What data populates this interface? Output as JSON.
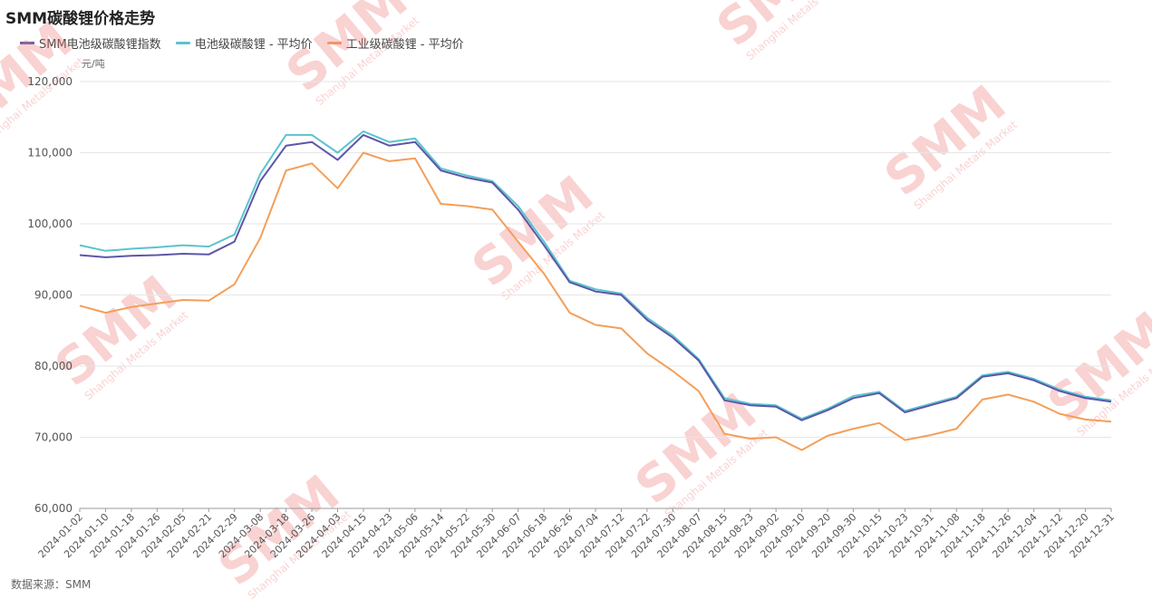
{
  "chart_data": {
    "type": "line",
    "title": "SMM碳酸锂价格走势",
    "unit": "元/吨",
    "source": "数据来源：SMM",
    "ylim": [
      60000,
      120000
    ],
    "yticks": [
      "60,000",
      "70,000",
      "80,000",
      "90,000",
      "100,000",
      "110,000",
      "120,000"
    ],
    "grid": "horizontal",
    "legend_position": "top-left",
    "x_tick_labels": [
      "2024-01-02",
      "2024-01-10",
      "2024-01-18",
      "2024-01-26",
      "2024-02-05",
      "2024-02-21",
      "2024-02-29",
      "2024-03-08",
      "2024-03-18",
      "2024-03-26",
      "2024-04-03",
      "2024-04-15",
      "2024-04-23",
      "2024-05-06",
      "2024-05-14",
      "2024-05-22",
      "2024-05-30",
      "2024-06-07",
      "2024-06-18",
      "2024-06-26",
      "2024-07-04",
      "2024-07-12",
      "2024-07-22",
      "2024-07-30",
      "2024-08-07",
      "2024-08-15",
      "2024-08-23",
      "2024-09-02",
      "2024-09-10",
      "2024-09-20",
      "2024-09-30",
      "2024-10-15",
      "2024-10-23",
      "2024-10-31",
      "2024-11-08",
      "2024-11-18",
      "2024-11-26",
      "2024-12-04",
      "2024-12-12",
      "2024-12-20",
      "2024-12-31"
    ],
    "x": [
      "2024-01-02",
      "2024-01-10",
      "2024-01-18",
      "2024-01-26",
      "2024-02-05",
      "2024-02-21",
      "2024-02-29",
      "2024-03-08",
      "2024-03-18",
      "2024-03-26",
      "2024-04-03",
      "2024-04-15",
      "2024-04-23",
      "2024-05-06",
      "2024-05-14",
      "2024-05-22",
      "2024-05-30",
      "2024-06-07",
      "2024-06-18",
      "2024-06-26",
      "2024-07-04",
      "2024-07-12",
      "2024-07-22",
      "2024-07-30",
      "2024-08-07",
      "2024-08-15",
      "2024-08-23",
      "2024-09-02",
      "2024-09-10",
      "2024-09-20",
      "2024-09-30",
      "2024-10-15",
      "2024-10-23",
      "2024-10-31",
      "2024-11-08",
      "2024-11-18",
      "2024-11-26",
      "2024-12-04",
      "2024-12-12",
      "2024-12-20",
      "2024-12-31"
    ],
    "series": [
      {
        "name": "SMM电池级碳酸锂指数",
        "color": "#5b57a8",
        "values": [
          95600,
          95300,
          95500,
          95600,
          95800,
          95700,
          97500,
          106000,
          111000,
          111500,
          109000,
          112500,
          111000,
          111500,
          107500,
          106500,
          105800,
          102000,
          97000,
          91800,
          90500,
          90000,
          86500,
          84000,
          80800,
          75200,
          74500,
          74300,
          72400,
          73800,
          75500,
          76200,
          73500,
          74500,
          75500,
          78500,
          79000,
          78000,
          76500,
          75500,
          75000
        ]
      },
      {
        "name": "电池级碳酸锂 - 平均价",
        "color": "#5cc3cf",
        "values": [
          97000,
          96200,
          96500,
          96700,
          97000,
          96800,
          98500,
          107000,
          112500,
          112500,
          110000,
          113000,
          111500,
          112000,
          107800,
          106800,
          106000,
          102500,
          97500,
          92000,
          90800,
          90200,
          86800,
          84300,
          81000,
          75500,
          74700,
          74500,
          72600,
          74000,
          75800,
          76400,
          73700,
          74700,
          75700,
          78700,
          79200,
          78200,
          76700,
          75700,
          75200
        ]
      },
      {
        "name": "工业级碳酸锂 - 平均价",
        "color": "#f39f5a",
        "values": [
          88500,
          87500,
          88300,
          88800,
          89300,
          89200,
          91500,
          98000,
          107500,
          108500,
          105000,
          110000,
          108800,
          109200,
          102800,
          102500,
          102000,
          97500,
          93000,
          87500,
          85800,
          85300,
          81800,
          79300,
          76500,
          70500,
          69800,
          70000,
          68200,
          70200,
          71200,
          72000,
          69600,
          70300,
          71200,
          75300,
          76000,
          75000,
          73300,
          72500,
          72200
        ]
      }
    ]
  },
  "watermark": {
    "brand": "SMM",
    "text": "Shanghai Metals Market"
  }
}
